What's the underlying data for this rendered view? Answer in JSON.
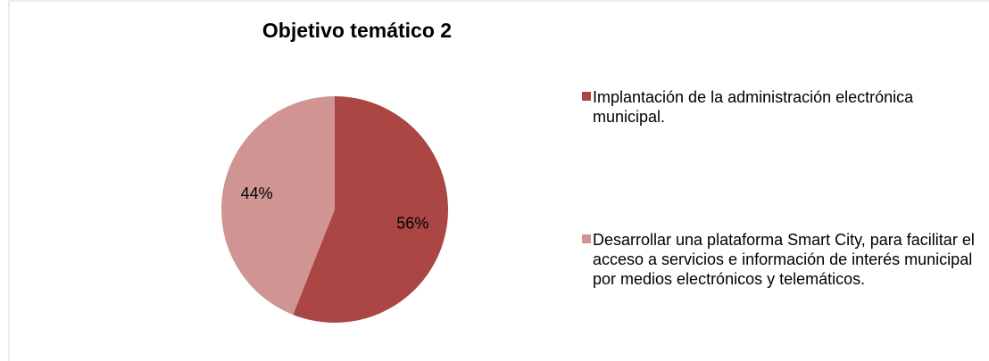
{
  "chart_data": {
    "type": "pie",
    "title": "Objetivo temático 2",
    "categories": [
      "Implantación de la administración electrónica municipal.",
      "Desarrollar una plataforma Smart City, para facilitar el acceso a servicios e información de interés municipal por medios electrónicos y telemáticos."
    ],
    "values": [
      56,
      44
    ],
    "value_labels": [
      "56%",
      "44%"
    ],
    "colors": [
      "#aa4643",
      "#d09493"
    ],
    "legend": "right"
  }
}
